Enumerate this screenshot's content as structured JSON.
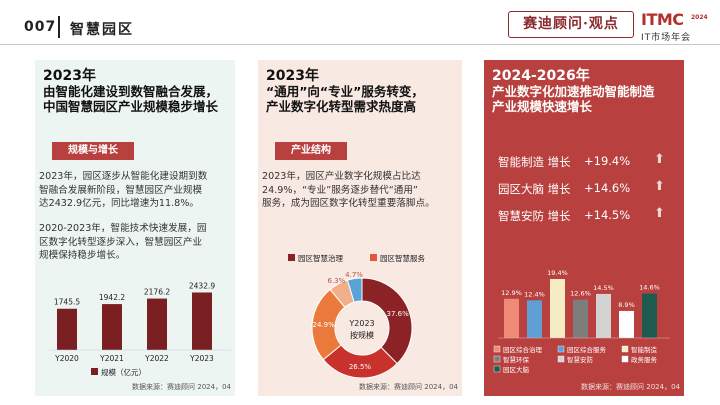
{
  "header": {
    "number": "007",
    "title": "智慧园区",
    "brand": "赛迪顾问·观点",
    "logo_main": "ITMC",
    "logo_year": "2024",
    "logo_sub": "IT市场年会"
  },
  "panel1": {
    "heading_line1": "2023年",
    "heading_line2": "由智能化建设到数智融合发展，",
    "heading_line3": "中国智慧园区产业规模稳步增长",
    "tag": "规模与增长",
    "para1_lines": [
      "2023年，园区逐步从智能化建设期到数",
      "智融合发展新阶段，智慧园区产业规模",
      "达2432.9亿元，同比增速为11.8%。"
    ],
    "para2_lines": [
      "2020-2023年，智能技术快速发展，园",
      "区数字化转型逐步深入，智慧园区产业",
      "规模保持稳步增长。"
    ],
    "source": "数据来源：赛迪顾问 2024，04"
  },
  "panel2": {
    "heading_line1": "2023年",
    "heading_line2": "“通用”向“专业”服务转变，",
    "heading_line3": "产业数字化转型需求热度高",
    "tag": "产业结构",
    "para1_lines": [
      "2023年，园区产业数字化规模占比达",
      "24.9%，“专业”服务逐步替代“通用”",
      "服务，成为园区数字化转型重要落脚点。"
    ],
    "source": "数据来源：赛迪顾问 2024，04"
  },
  "panel3": {
    "heading_line1": "2024-2026年",
    "heading_line2": "产业数字化加速推动智能制造",
    "heading_line3": "产业规模快速增长",
    "growth": [
      {
        "name": "智能制造 增长",
        "pct": "+19.4%"
      },
      {
        "name": "园区大脑 增长",
        "pct": "+14.6%"
      },
      {
        "name": "智慧安防 增长",
        "pct": "+14.5%"
      }
    ],
    "arrow_glyph": "⬆",
    "source": "数据来源：赛迪顾问 2024，04"
  },
  "chart_data": [
    {
      "type": "bar",
      "title": "",
      "categories": [
        "Y2020",
        "Y2021",
        "Y2022",
        "Y2023"
      ],
      "series": [
        {
          "name": "规模（亿元）",
          "values": [
            1745.5,
            1942.2,
            2176.2,
            2432.9
          ]
        }
      ],
      "value_labels": [
        "1745.5",
        "1942.2",
        "2176.2",
        "2432.9"
      ],
      "legend": "规模（亿元）",
      "ylim": [
        0,
        3300
      ],
      "color": "#7a1f22"
    },
    {
      "type": "pie",
      "title": "Y2023按规模",
      "center_line1": "Y2023",
      "center_line2": "按规模",
      "legend": [
        "园区智慧治理",
        "园区智慧服务"
      ],
      "legend_colors": [
        "#8b2326",
        "#e0553b"
      ],
      "slices": [
        {
          "value": 37.6,
          "label": "37.6%",
          "color": "#8b2326"
        },
        {
          "value": 26.5,
          "label": "26.5%",
          "color": "#c9312c"
        },
        {
          "value": 24.9,
          "label": "24.9%",
          "color": "#ea7a3b"
        },
        {
          "value": 6.3,
          "label": "6.3%",
          "color": "#f2b08a"
        },
        {
          "value": 4.7,
          "label": "4.7%",
          "color": "#5aa3d6"
        }
      ]
    },
    {
      "type": "bar",
      "title": "",
      "series": [
        {
          "name": "园区综合治理",
          "value": 12.9,
          "label": "12.9%",
          "color": "#ee8a76"
        },
        {
          "name": "园区综合服务",
          "value": 12.4,
          "label": "12.4%",
          "color": "#5f9fd6"
        },
        {
          "name": "智能制造",
          "value": 19.4,
          "label": "19.4%",
          "color": "#f6ecc4"
        },
        {
          "name": "智慧环保",
          "value": 12.6,
          "label": "12.6%",
          "color": "#7d7d7d"
        },
        {
          "name": "智慧安防",
          "value": 14.5,
          "label": "14.5%",
          "color": "#d3d3d3"
        },
        {
          "name": "政务服务",
          "value": 8.9,
          "label": "8.9%",
          "color": "#ffffff"
        },
        {
          "name": "园区大脑",
          "value": 14.6,
          "label": "14.6%",
          "color": "#1f5a4e"
        }
      ],
      "legend": [
        "园区综合治理",
        "园区综合服务",
        "智能制造",
        "智慧环保",
        "智慧安防",
        "政务服务",
        "园区大脑"
      ],
      "ylim": [
        0,
        25
      ]
    }
  ]
}
